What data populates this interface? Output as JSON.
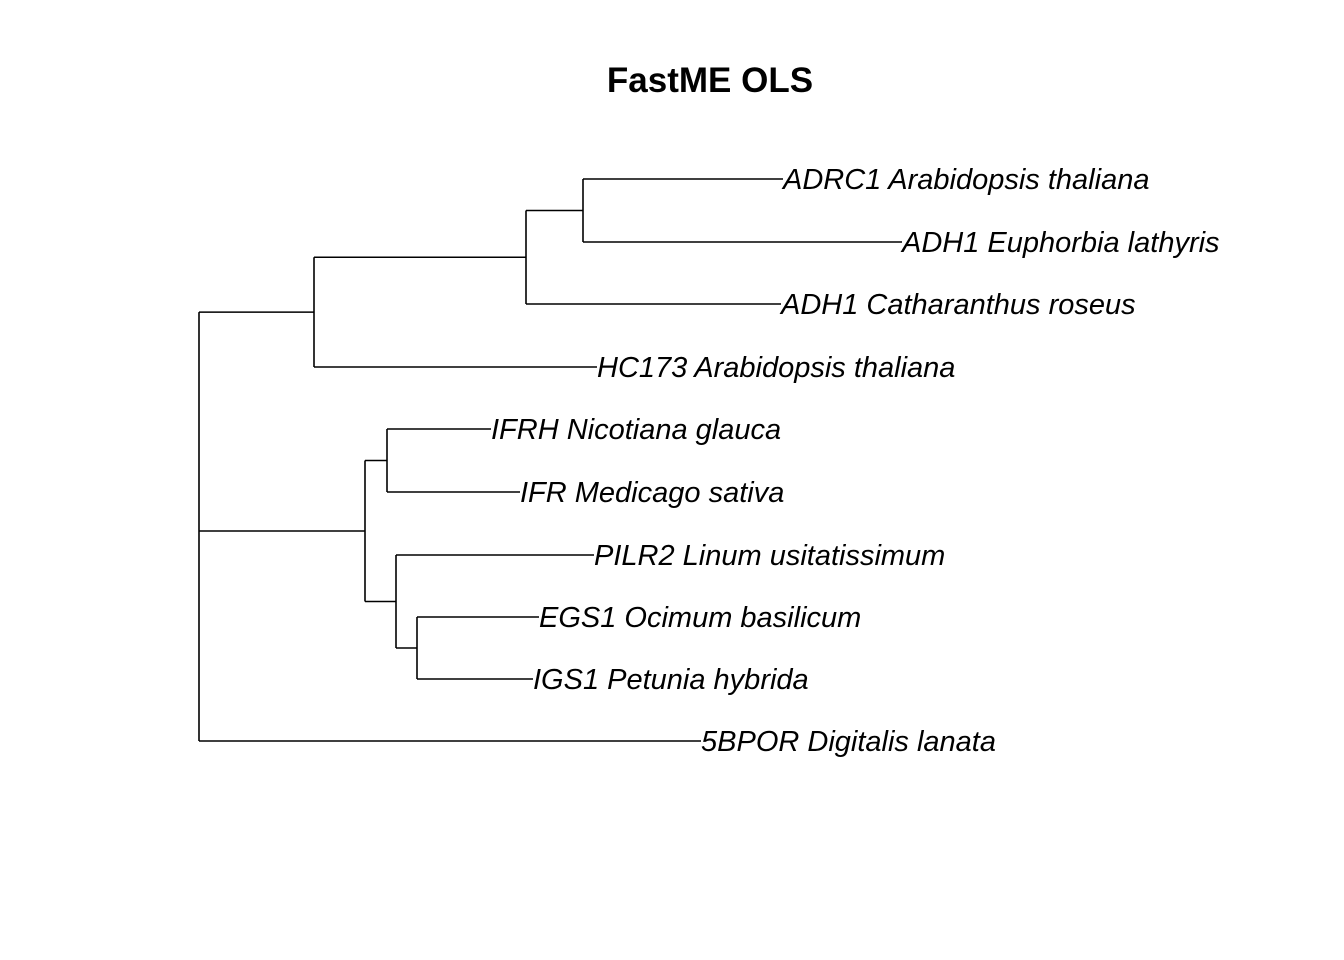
{
  "title": "FastME OLS",
  "tree": {
    "children": [
      {
        "children": [
          {
            "children": [
              {
                "children": [
                  {
                    "label": "ADRC1 Arabidopsis thaliana"
                  },
                  {
                    "label": "ADH1 Euphorbia lathyris"
                  }
                ]
              },
              {
                "label": "ADH1 Catharanthus roseus"
              }
            ]
          },
          {
            "label": "HC173 Arabidopsis thaliana"
          }
        ]
      },
      {
        "children": [
          {
            "children": [
              {
                "label": "IFRH Nicotiana glauca"
              },
              {
                "label": "IFR Medicago sativa"
              }
            ]
          },
          {
            "children": [
              {
                "label": "PILR2 Linum usitatissimum"
              },
              {
                "children": [
                  {
                    "label": "EGS1 Ocimum basilicum"
                  },
                  {
                    "label": "IGS1 Petunia hybrida"
                  }
                ]
              }
            ]
          }
        ]
      },
      {
        "label": "5BPOR Digitalis lanata"
      }
    ]
  },
  "colors": {
    "line": "#000000",
    "text": "#000000",
    "background": "#ffffff"
  }
}
